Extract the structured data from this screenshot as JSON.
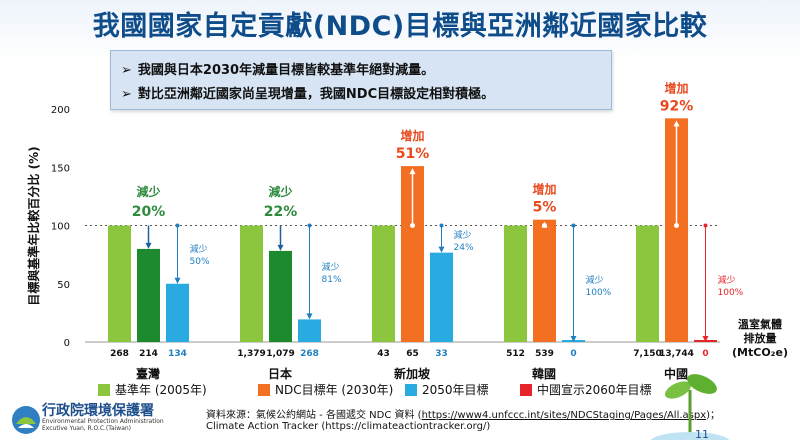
{
  "title": "我國國家自定貢獻(NDC)目標與亞洲鄰近國家比較",
  "notes": [
    "我國與日本2030年減量目標皆較基準年絕對減量。",
    "對比亞洲鄰近國家尚呈現增量，我國NDC目標設定相對積極。"
  ],
  "note_arrow": "➢",
  "colors": {
    "base": "#8cc63f",
    "ndc": "#f36f21",
    "target2050": "#29abe2",
    "china2060": "#e8242b",
    "green_text": "#2e8b3e",
    "orange_text": "#e8491d",
    "blue_text": "#1f5f9e",
    "dark_green_bar": "#1d8a2f"
  },
  "chart_data": {
    "type": "bar",
    "ylabel": "目標與基準年比較百分比 (%)",
    "ylim": [
      0,
      200
    ],
    "yticks": [
      0,
      50,
      100,
      150,
      200
    ],
    "reference_line": 100,
    "series_names": [
      "基準年 (2005年)",
      "NDC目標年 (2030年)",
      "2050年目標",
      "中國宣示2060年目標"
    ],
    "countries": [
      {
        "name": "臺灣",
        "values": [
          100,
          79.9,
          50
        ],
        "emissions": [
          "268",
          "214",
          "134"
        ],
        "change_label": "減少",
        "change_pct": "20%",
        "direction": "down",
        "long_label": "減少\n50%"
      },
      {
        "name": "日本",
        "values": [
          100,
          78.2,
          19.4
        ],
        "emissions": [
          "1,379",
          "1,079",
          "268"
        ],
        "change_label": "減少",
        "change_pct": "22%",
        "direction": "down",
        "long_label": "減少\n81%"
      },
      {
        "name": "新加坡",
        "values": [
          100,
          151,
          76.7
        ],
        "emissions": [
          "43",
          "65",
          "33"
        ],
        "change_label": "增加",
        "change_pct": "51%",
        "direction": "up",
        "long_label": "減少\n24%"
      },
      {
        "name": "韓國",
        "values": [
          100,
          105,
          0
        ],
        "emissions": [
          "512",
          "539",
          "0"
        ],
        "change_label": "增加",
        "change_pct": "5%",
        "direction": "up",
        "long_label": "減少\n100%"
      },
      {
        "name": "中國",
        "values": [
          100,
          192,
          0
        ],
        "emissions": [
          "7,150",
          "13,744",
          "0"
        ],
        "change_label": "增加",
        "change_pct": "92%",
        "direction": "up",
        "long_label": "減少\n100%"
      }
    ],
    "emission_unit_line1": "溫室氣體",
    "emission_unit_line2": "排放量",
    "emission_unit_line3": "(MtCO₂e)"
  },
  "legend": [
    {
      "label": "基準年 (2005年)",
      "color": "#8cc63f"
    },
    {
      "label": "NDC目標年 (2030年)",
      "color": "#f36f21"
    },
    {
      "label": "2050年目標",
      "color": "#29abe2"
    },
    {
      "label": "中國宣示2060年目標",
      "color": "#e8242b"
    }
  ],
  "logo": {
    "name": "行政院環境保護署",
    "sub1": "Environmental Protection Administration",
    "sub2": "Excutive Yuan, R.O.C.(Taiwan)"
  },
  "source": {
    "prefix": "資料來源：氣候公約網站 - 各國遞交 NDC 資料 (",
    "link": "https://www4.unfccc.int/sites/NDCStaging/Pages/All.aspx",
    "suffix": ")；",
    "line2": "Climate Action Tracker (https://climateactiontracker.org/)"
  },
  "page_number": "11"
}
